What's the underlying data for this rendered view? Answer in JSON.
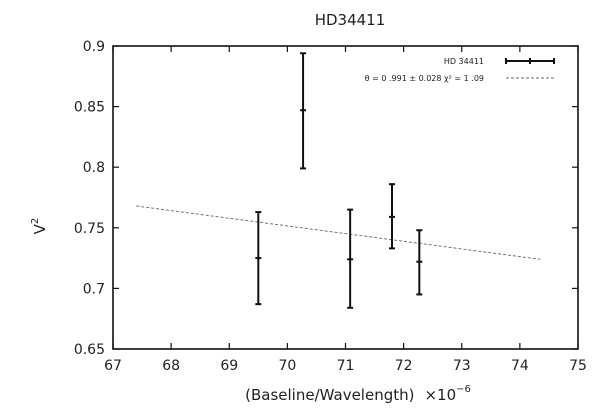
{
  "chart_data": {
    "type": "scatter",
    "title": "HD34411",
    "xlabel": "(Baseline/Wavelength)",
    "xlabel_multiplier": "×10",
    "xlabel_exponent": "−6",
    "ylabel": "V",
    "ylabel_exponent": "2",
    "xlim": [
      67,
      75
    ],
    "ylim": [
      0.65,
      0.9
    ],
    "xticks": [
      "67",
      "68",
      "69",
      "70",
      "71",
      "72",
      "73",
      "74",
      "75"
    ],
    "yticks": [
      "0.65",
      "0.7",
      "0.75",
      "0.8",
      "0.85",
      "0.9"
    ],
    "grid": false,
    "legend_position": "top-right",
    "series": [
      {
        "name": "HD 34411",
        "style": "errorbars",
        "points": [
          {
            "x": 69.5,
            "y": 0.725,
            "ylow": 0.687,
            "yhigh": 0.763
          },
          {
            "x": 70.27,
            "y": 0.847,
            "ylow": 0.799,
            "yhigh": 0.894
          },
          {
            "x": 71.08,
            "y": 0.724,
            "ylow": 0.684,
            "yhigh": 0.765
          },
          {
            "x": 71.8,
            "y": 0.759,
            "ylow": 0.733,
            "yhigh": 0.786
          },
          {
            "x": 72.27,
            "y": 0.722,
            "ylow": 0.695,
            "yhigh": 0.748
          }
        ]
      },
      {
        "name": "θ = 0 .991 ± 0.028 χ² = 1 .09",
        "style": "dashed-line",
        "points": [
          {
            "x": 67.4,
            "y": 0.768
          },
          {
            "x": 74.35,
            "y": 0.724
          }
        ]
      }
    ]
  }
}
